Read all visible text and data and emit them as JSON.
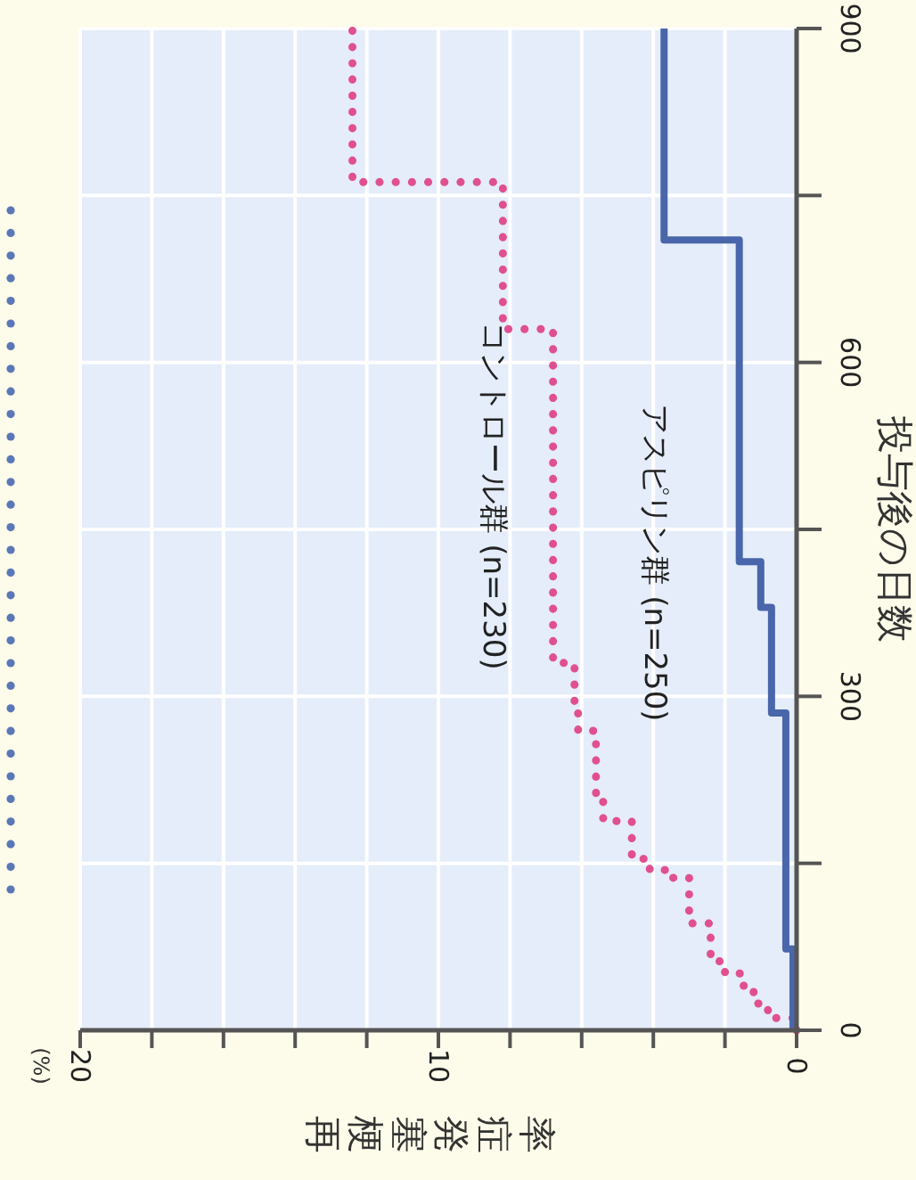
{
  "chart_data": {
    "type": "step",
    "orientation": "horizontal",
    "xlabel": "再梗塞発症率",
    "ylabel": "投与後の日数",
    "annotations": [
      "(%)"
    ],
    "series": [
      {
        "name": "コントロール群 (n=230)",
        "color": "#e0508f",
        "line_style": "dotted",
        "x": [
          0,
          11,
          24,
          40,
          51,
          62,
          96,
          137,
          144,
          154,
          188,
          207,
          269,
          291,
          330,
          630,
          762,
          900
        ],
        "values": [
          0,
          0.8,
          1.2,
          1.5,
          2.0,
          2.4,
          3.0,
          3.5,
          4.1,
          4.6,
          5.4,
          5.6,
          6.1,
          6.2,
          6.8,
          8.2,
          12.4,
          12.4
        ]
      },
      {
        "name": "アスピリン群 (n=250)",
        "color": "#4a66aa",
        "line_style": "solid",
        "x": [
          0,
          73,
          285,
          380,
          421,
          710,
          900
        ],
        "values": [
          0.1,
          0.3,
          0.7,
          1.0,
          1.6,
          3.7,
          3.7
        ]
      }
    ],
    "xlim": [
      20,
      0
    ],
    "xticks": [
      20,
      {
        "value": 18,
        "label": null
      },
      {
        "value": 16,
        "label": null
      },
      {
        "value": 14,
        "label": null
      },
      {
        "value": 12,
        "label": null
      },
      10,
      {
        "value": 8,
        "label": null
      },
      {
        "value": 6,
        "label": null
      },
      {
        "value": 4,
        "label": null
      },
      {
        "value": 2,
        "label": null
      },
      0
    ],
    "ylim": [
      0,
      900
    ],
    "yticks": [
      0,
      {
        "value": 150,
        "label": null
      },
      300,
      {
        "value": 450,
        "label": null
      },
      600,
      {
        "value": 750,
        "label": null
      },
      900
    ],
    "grid": true,
    "legend": false
  }
}
